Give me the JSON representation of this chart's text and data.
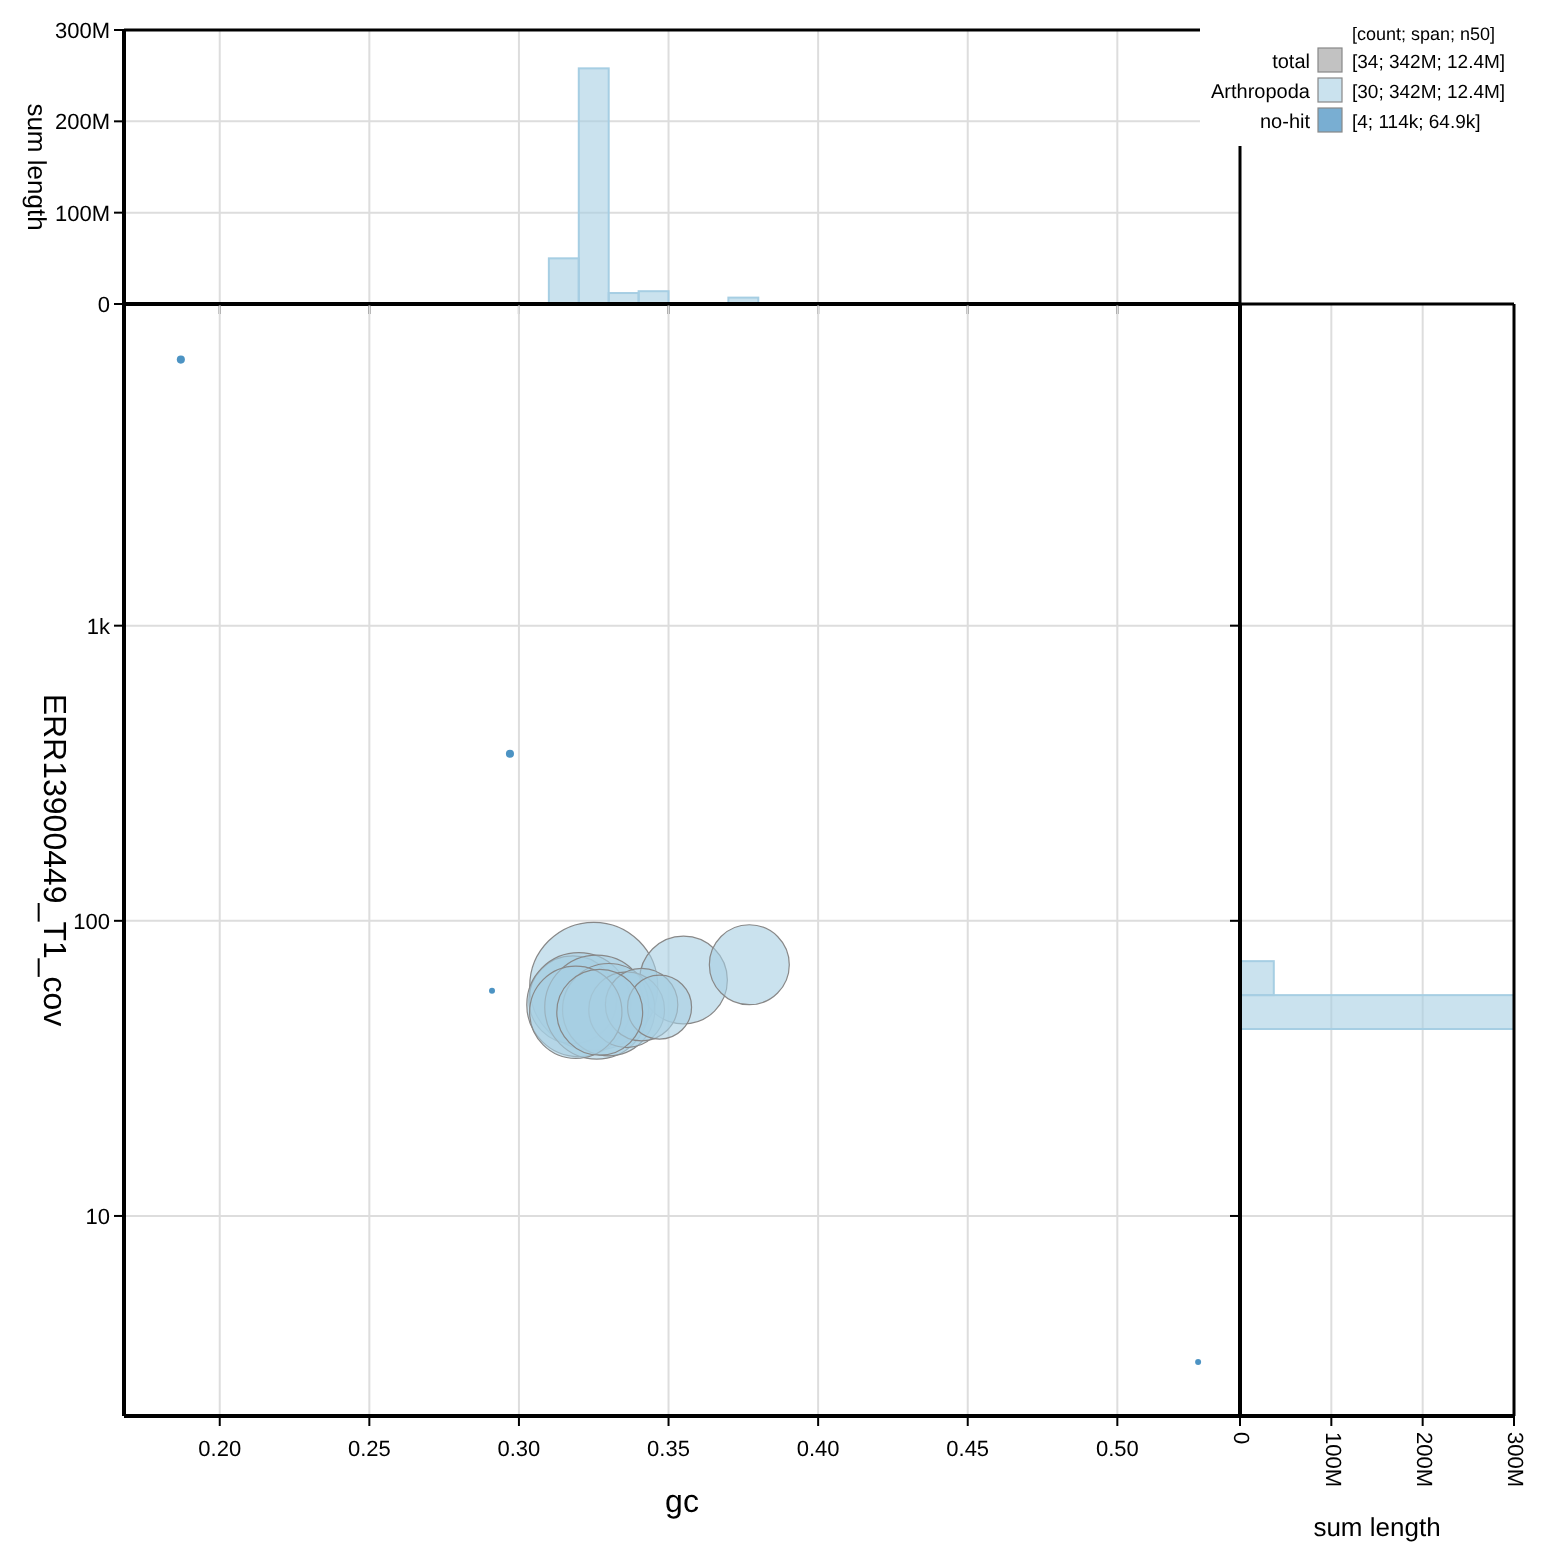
{
  "chart_data": [
    {
      "type": "histogram",
      "ylabel": "sum length",
      "bins": [
        0.31,
        0.32,
        0.33,
        0.34,
        0.35,
        0.36,
        0.37,
        0.38
      ],
      "values": [
        50,
        258,
        12,
        14,
        0,
        0,
        7
      ],
      "color": "#a6cee3",
      "xlim": [
        0.168,
        0.541
      ],
      "xticks": [
        {
          "value": 0.2,
          "label": null
        },
        {
          "value": 0.25,
          "label": null
        },
        {
          "value": 0.3,
          "label": null
        },
        {
          "value": 0.35,
          "label": null
        },
        {
          "value": 0.4,
          "label": null
        },
        {
          "value": 0.45,
          "label": null
        },
        {
          "value": 0.5,
          "label": null
        }
      ],
      "ylim": [
        0,
        300
      ],
      "yticks": [
        0,
        {
          "value": 100,
          "label": "100M"
        },
        {
          "value": 200,
          "label": "200M"
        },
        {
          "value": 300,
          "label": "300M"
        }
      ],
      "grid": true,
      "tick_labels": "y"
    },
    {
      "type": "bubble",
      "xlabel": "gc",
      "ylabel": "ERR13900449_T1_cov",
      "log": "y",
      "grid": true,
      "legend": "top right",
      "legend_title": "[count; span; n50]",
      "annotations": [
        "[34; 342M; 12.4M]",
        "[30; 342M; 12.4M]",
        "[4; 114k; 64.9k]"
      ],
      "xlim": [
        0.168,
        0.541
      ],
      "xticks": [
        {
          "value": 0.2,
          "label": "0.20"
        },
        {
          "value": 0.25,
          "label": "0.25"
        },
        {
          "value": 0.3,
          "label": "0.30"
        },
        {
          "value": 0.35,
          "label": "0.35"
        },
        {
          "value": 0.4,
          "label": "0.40"
        },
        {
          "value": 0.45,
          "label": "0.45"
        },
        {
          "value": 0.5,
          "label": "0.50"
        }
      ],
      "ylim": [
        2.1,
        12300
      ],
      "yticks": [
        10,
        100,
        {
          "value": 1000,
          "label": "1k"
        }
      ],
      "series": [
        {
          "name": "total",
          "color": "#999999"
        },
        {
          "name": "Arthropoda",
          "color": "#a6cee3",
          "x": [
            0.325,
            0.355,
            0.377,
            0.318,
            0.32,
            0.326,
            0.33,
            0.336,
            0.341,
            0.347,
            0.319,
            0.327
          ],
          "values": [
            60,
            63,
            71,
            54,
            52,
            51,
            50,
            50,
            52,
            51,
            49,
            49
          ],
          "sizes": [
            1,
            0.47,
            0.39,
            0.47,
            0.66,
            0.66,
            0.52,
            0.35,
            0.32,
            0.25,
            0.52,
            0.45
          ]
        },
        {
          "name": "no-hit",
          "color": "#1f78b4",
          "x": [
            0.187,
            0.297,
            0.291,
            0.527
          ],
          "values": [
            7970,
            368,
            58,
            3.2
          ],
          "sizes": [
            0.004,
            0.004,
            0.002,
            0.001
          ]
        }
      ]
    },
    {
      "type": "histogram",
      "orientation": "horizontal",
      "xlabel": "sum length",
      "log": "y",
      "bins": [
        43,
        56,
        73
      ],
      "values": [
        300,
        37
      ],
      "color": "#a6cee3",
      "xlim": [
        0,
        300
      ],
      "xticks": [
        0,
        {
          "value": 100,
          "label": "100M"
        },
        {
          "value": 200,
          "label": "200M"
        },
        {
          "value": 300,
          "label": "300M"
        }
      ],
      "ylim": [
        2.1,
        12300
      ],
      "yticks": [
        {
          "value": 10,
          "label": null
        },
        {
          "value": 100,
          "label": null
        },
        {
          "value": 1000,
          "label": null
        }
      ],
      "grid": true,
      "tick_labels": "x"
    }
  ]
}
